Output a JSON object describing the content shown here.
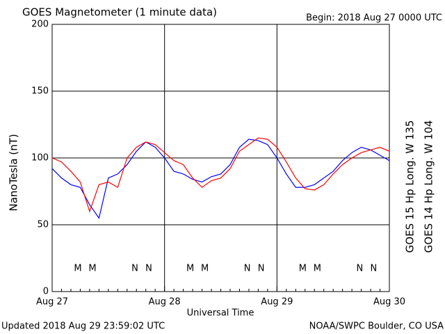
{
  "chart_data": {
    "type": "line",
    "title": "GOES Magnetometer (1 minute data)",
    "begin": "Begin:  2018 Aug 27 0000 UTC",
    "ylabel": "NanoTesla (nT)",
    "xlabel": "Universal Time",
    "updated": "Updated 2018 Aug 29 23:59:02 UTC",
    "credit": "NOAA/SWPC Boulder, CO USA",
    "categories": [
      "Aug 27",
      null,
      null,
      null,
      null,
      null,
      null,
      null,
      null,
      null,
      null,
      null,
      "Aug 28",
      null,
      null,
      null,
      null,
      null,
      null,
      null,
      null,
      null,
      null,
      null,
      "Aug 29",
      null,
      null,
      null,
      null,
      null,
      null,
      null,
      null,
      null,
      null,
      null,
      "Aug 30"
    ],
    "series": [
      {
        "name": "GOES 15 Hp  Long. W 135",
        "color": "#ff0000",
        "values": [
          100,
          97,
          90,
          82,
          60,
          80,
          82,
          78,
          100,
          108,
          112,
          110,
          104,
          98,
          95,
          85,
          78,
          83,
          85,
          92,
          105,
          110,
          115,
          114,
          108,
          97,
          85,
          77,
          76,
          80,
          88,
          95,
          100,
          104,
          106,
          108,
          105
        ]
      },
      {
        "name": "GOES 14 Hp  Long. W 104",
        "color": "#0000ff",
        "values": [
          92,
          85,
          80,
          78,
          65,
          55,
          85,
          88,
          95,
          105,
          112,
          108,
          100,
          90,
          88,
          84,
          82,
          86,
          88,
          95,
          108,
          114,
          113,
          110,
          100,
          88,
          78,
          78,
          80,
          85,
          90,
          98,
          104,
          108,
          106,
          102,
          98
        ]
      }
    ],
    "markers": [
      {
        "text": "M",
        "color": "#0000ff"
      },
      {
        "text": "M",
        "color": "#ff0000"
      },
      {
        "text": "N",
        "color": "#0000ff"
      },
      {
        "text": "N",
        "color": "#ff0000"
      },
      {
        "text": "M",
        "color": "#0000ff"
      },
      {
        "text": "M",
        "color": "#ff0000"
      },
      {
        "text": "N",
        "color": "#0000ff"
      },
      {
        "text": "N",
        "color": "#ff0000"
      },
      {
        "text": "M",
        "color": "#0000ff"
      },
      {
        "text": "M",
        "color": "#ff0000"
      },
      {
        "text": "N",
        "color": "#0000ff"
      },
      {
        "text": "N",
        "color": "#ff0000"
      }
    ],
    "ylim": [
      0,
      200
    ],
    "yticks": [
      0,
      50,
      100,
      150,
      200
    ],
    "grid": true
  }
}
